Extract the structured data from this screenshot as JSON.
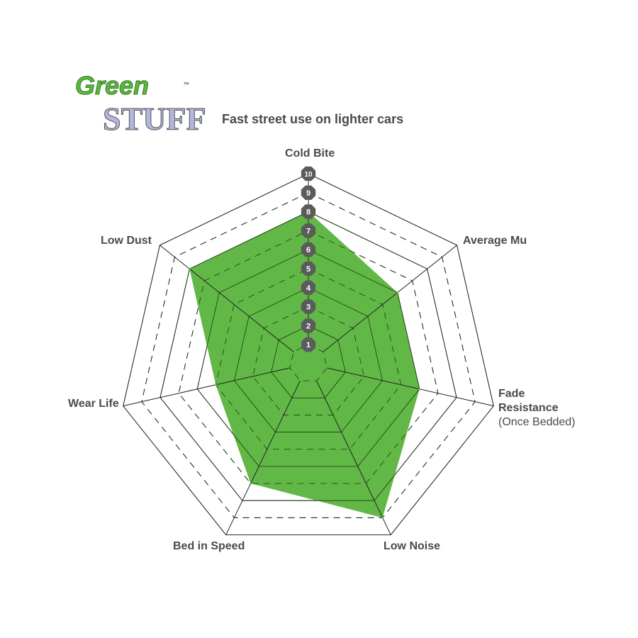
{
  "logo": {
    "line1": "Green",
    "line2": "STUFF",
    "tm": "™"
  },
  "chart_data": {
    "type": "radar",
    "title": "Fast street use on lighter cars",
    "axes": [
      "Cold Bite",
      "Average Mu",
      "Fade Resistance",
      "Low Noise",
      "Bed in Speed",
      "Wear Life",
      "Low Dust"
    ],
    "axis_sublabels": {
      "Fade Resistance": "(Once Bedded)"
    },
    "values": [
      8,
      6,
      6,
      9,
      7,
      5,
      8
    ],
    "range": [
      0,
      10
    ],
    "tick_labels": [
      "1",
      "2",
      "3",
      "4",
      "5",
      "6",
      "7",
      "8",
      "9",
      "10"
    ],
    "fill_color": "#62b846",
    "marker_color": "#5b5b5b"
  }
}
